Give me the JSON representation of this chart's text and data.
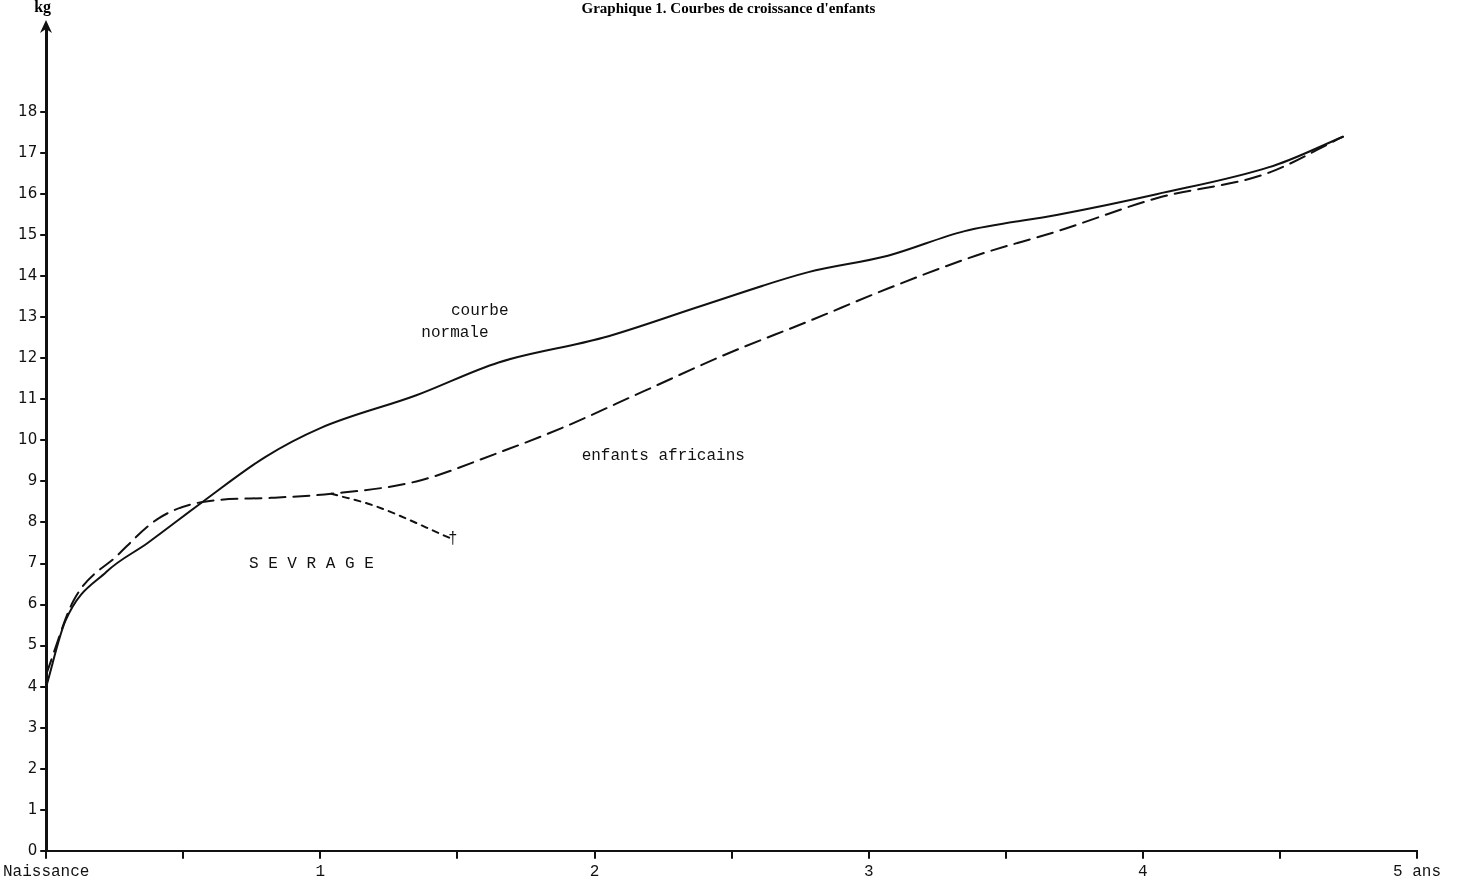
{
  "chart_data": {
    "type": "line",
    "title": "Graphique 1. Courbes de croissance d'enfants",
    "ylabel": "kg",
    "xlim": [
      0,
      5
    ],
    "ylim": [
      0,
      20
    ],
    "xticks": [
      {
        "value": 0,
        "label": "Naissance"
      },
      {
        "value": 0.5,
        "label": null
      },
      1,
      {
        "value": 1.5,
        "label": null
      },
      2,
      {
        "value": 2.5,
        "label": null
      },
      3,
      {
        "value": 3.5,
        "label": null
      },
      4,
      {
        "value": 4.5,
        "label": null
      },
      {
        "value": 5,
        "label": "5 ans"
      }
    ],
    "yticks": [
      0,
      1,
      2,
      3,
      4,
      5,
      6,
      7,
      8,
      9,
      10,
      11,
      12,
      13,
      14,
      15,
      16,
      17,
      18
    ],
    "grid": false,
    "legend": false,
    "marker": "none",
    "series": [
      {
        "name": "courbe normale",
        "color": "#111111",
        "line_style": "solid",
        "x": [
          0,
          0.07,
          0.22,
          0.37,
          0.57,
          0.8,
          1.0,
          1.35,
          1.65,
          2.03,
          2.4,
          2.78,
          3.07,
          3.35,
          3.69,
          4.05,
          4.48,
          4.73
        ],
        "values": [
          4.0,
          5.6,
          6.8,
          7.5,
          8.5,
          9.6,
          10.3,
          11.1,
          11.9,
          12.5,
          13.3,
          14.1,
          14.5,
          15.1,
          15.5,
          16.0,
          16.7,
          17.4
        ]
      },
      {
        "name": "enfants africains",
        "color": "#111111",
        "line_style": "dashed",
        "x": [
          0,
          0.1,
          0.26,
          0.41,
          0.57,
          0.82,
          1.04,
          1.35,
          1.65,
          1.88,
          2.18,
          2.48,
          2.78,
          3.07,
          3.39,
          3.69,
          4.05,
          4.45,
          4.73
        ],
        "values": [
          4.3,
          6.1,
          7.2,
          8.1,
          8.5,
          8.6,
          8.7,
          9.0,
          9.7,
          10.3,
          11.2,
          12.1,
          12.9,
          13.7,
          14.5,
          15.1,
          15.9,
          16.5,
          17.4
        ]
      },
      {
        "color": "#111111",
        "line_style": "dotted",
        "x": [
          1.04,
          1.2,
          1.48
        ],
        "values": [
          8.7,
          8.4,
          7.6
        ]
      }
    ],
    "annotations": [
      "S E V R A G E",
      {
        "text": "†",
        "x": 1.48,
        "y": 7.6
      }
    ]
  }
}
